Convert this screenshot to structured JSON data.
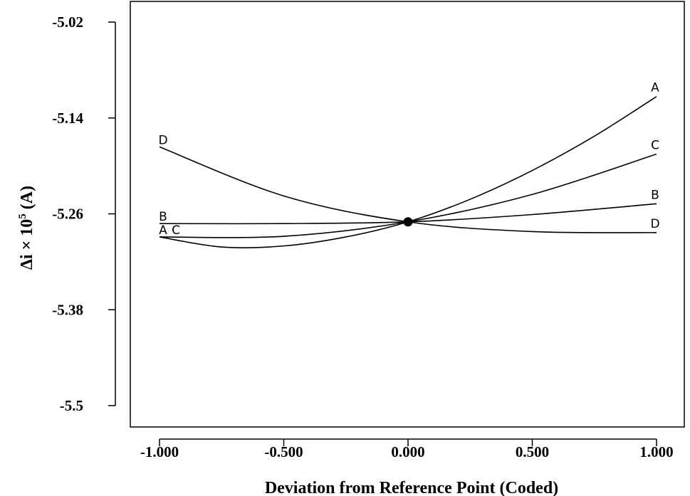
{
  "chart_data": {
    "type": "line",
    "title": "",
    "xlabel": "Deviation from Reference Point (Coded)",
    "ylabel": "Δi × 10^5 (A)",
    "ylabel_parts": {
      "main": "Δi × 10",
      "sup": "5",
      "unit": " (A)"
    },
    "xlim": [
      -1.1,
      1.1
    ],
    "ylim": [
      -5.5,
      -5.02
    ],
    "x_ticks": [
      -1.0,
      -0.5,
      0.0,
      0.5,
      1.0
    ],
    "x_tick_labels": [
      "-1.000",
      "-0.500",
      "0.000",
      "0.500",
      "1.000"
    ],
    "y_ticks": [
      -5.02,
      -5.14,
      -5.26,
      -5.38,
      -5.5
    ],
    "y_tick_labels": [
      "-5.02",
      "-5.14",
      "-5.26",
      "-5.38",
      "-5.5"
    ],
    "grid": false,
    "reference_point": {
      "x": 0.0,
      "y": -5.27
    },
    "series": [
      {
        "name": "A",
        "x": [
          -1.0,
          -0.75,
          -0.5,
          -0.25,
          0.0,
          0.25,
          0.5,
          0.75,
          1.0
        ],
        "y": [
          -5.2889,
          -5.3015,
          -5.3002,
          -5.2889,
          -5.27,
          -5.2418,
          -5.2057,
          -5.1628,
          -5.1132
        ]
      },
      {
        "name": "B",
        "x": [
          -1.0,
          -0.5,
          0.0,
          0.5,
          1.0
        ],
        "y": [
          -5.2722,
          -5.2722,
          -5.27,
          -5.2609,
          -5.2474
        ]
      },
      {
        "name": "C",
        "x": [
          -1.0,
          -0.5,
          0.0,
          0.5,
          1.0
        ],
        "y": [
          -5.2889,
          -5.2881,
          -5.27,
          -5.2357,
          -5.1852
        ]
      },
      {
        "name": "D",
        "x": [
          -1.0,
          -0.5,
          0.0,
          0.5,
          1.0
        ],
        "y": [
          -5.1762,
          -5.2376,
          -5.27,
          -5.2822,
          -5.2835
        ]
      }
    ],
    "curve_labels": [
      {
        "series": "A",
        "end": "right",
        "text": "A"
      },
      {
        "series": "C",
        "end": "right",
        "text": "C"
      },
      {
        "series": "B",
        "end": "right",
        "text": "B"
      },
      {
        "series": "D",
        "end": "right",
        "text": "D"
      },
      {
        "series": "D",
        "end": "left",
        "text": "D"
      },
      {
        "series": "B",
        "end": "left",
        "text": "B"
      },
      {
        "series": "A",
        "end": "left",
        "text": "A"
      },
      {
        "series": "C",
        "end": "left",
        "text": "C"
      }
    ]
  }
}
